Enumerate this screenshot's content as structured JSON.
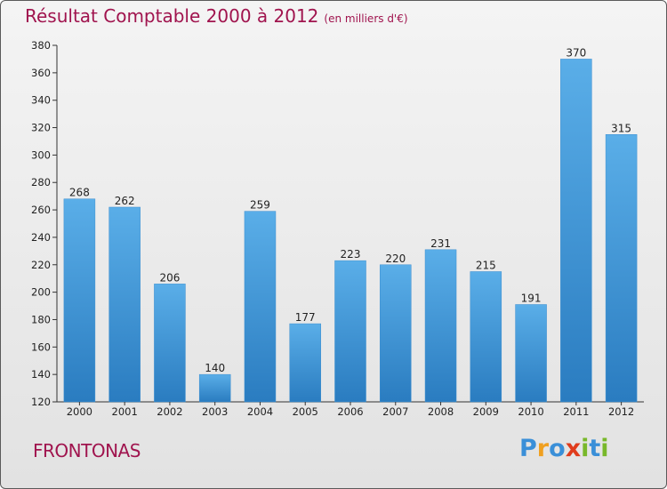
{
  "header": {
    "title": "Résultat Comptable 2000 à 2012",
    "unit": "(en milliers d'€)"
  },
  "footer": {
    "place": "FRONTONAS",
    "logo_letters": [
      "P",
      "r",
      "o",
      "x",
      "i",
      "t",
      "i"
    ],
    "logo_colors": [
      "#3a8fd8",
      "#f0a020",
      "#3a8fd8",
      "#e03c1c",
      "#78b82a",
      "#3a8fd8",
      "#78b82a"
    ]
  },
  "colors": {
    "title": "#a0144e",
    "bar_light": "#5aaee8",
    "bar_dark": "#2a7cc0"
  },
  "chart_data": {
    "type": "bar",
    "title": "Résultat Comptable 2000 à 2012",
    "subtitle": "(en milliers d'€)",
    "xlabel": "",
    "ylabel": "",
    "categories": [
      "2000",
      "2001",
      "2002",
      "2003",
      "2004",
      "2005",
      "2006",
      "2007",
      "2008",
      "2009",
      "2010",
      "2011",
      "2012"
    ],
    "values": [
      268,
      262,
      206,
      140,
      259,
      177,
      223,
      220,
      231,
      215,
      191,
      370,
      315
    ],
    "ylim": [
      120,
      380
    ],
    "yticks": [
      120,
      140,
      160,
      180,
      200,
      220,
      240,
      260,
      280,
      300,
      320,
      340,
      360,
      380
    ],
    "grid": false,
    "legend": "none"
  }
}
